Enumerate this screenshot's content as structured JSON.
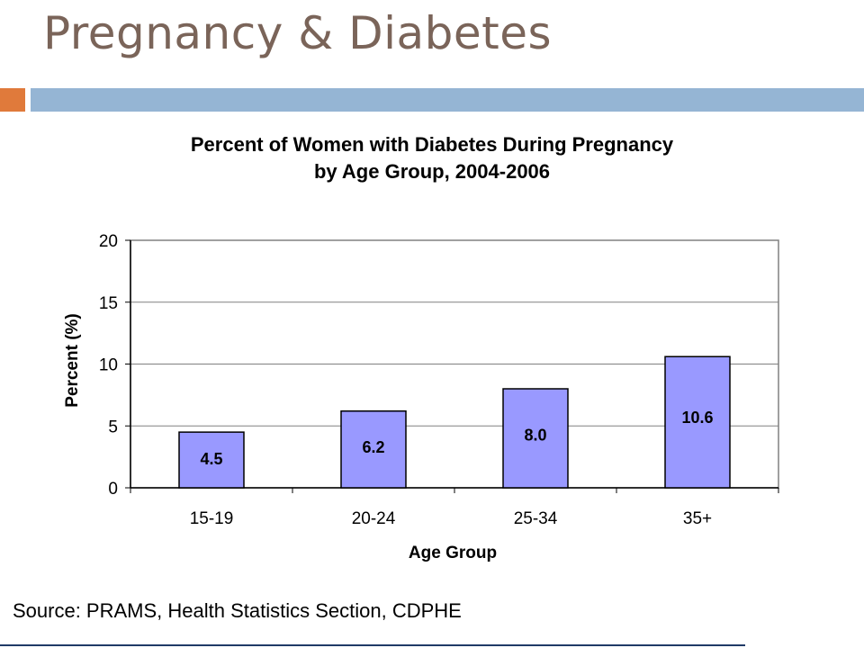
{
  "slide": {
    "title": "Pregnancy & Diabetes",
    "source": "Source: PRAMS, Health Statistics Section, CDPHE"
  },
  "colors": {
    "accent_square": "#e07a3b",
    "title_bar": "#95b5d4",
    "bar_fill": "#9999ff",
    "title_text": "#7a6459"
  },
  "chart_data": {
    "type": "bar",
    "title_line1": "Percent of Women with Diabetes During Pregnancy",
    "title_line2": "by Age Group, 2004-2006",
    "xlabel": "Age Group",
    "ylabel": "Percent (%)",
    "categories": [
      "15-19",
      "20-24",
      "25-34",
      "35+"
    ],
    "values": [
      4.5,
      6.2,
      8.0,
      10.6
    ],
    "data_labels": [
      "4.5",
      "6.2",
      "8.0",
      "10.6"
    ],
    "ylim": [
      0,
      20
    ],
    "yticks": [
      0,
      5,
      10,
      15,
      20
    ],
    "grid": true,
    "legend": "none"
  }
}
